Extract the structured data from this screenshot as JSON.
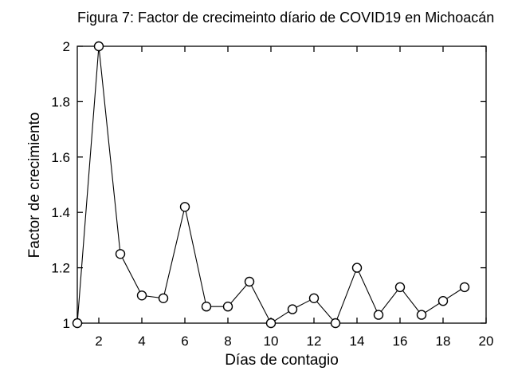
{
  "figure": {
    "title": "Figura 7: Factor de crecimeinto díario de COVID19 en Michoacán"
  },
  "chart_data": {
    "type": "line",
    "title": "Figura 7: Factor de crecimeinto díario de COVID19 en Michoacán",
    "xlabel": "Días de contagio",
    "ylabel": "Factor de crecimiento",
    "x": [
      1,
      2,
      3,
      4,
      5,
      6,
      7,
      8,
      9,
      10,
      11,
      12,
      13,
      14,
      15,
      16,
      17,
      18,
      19
    ],
    "y": [
      1.0,
      2.0,
      1.25,
      1.1,
      1.09,
      1.42,
      1.06,
      1.06,
      1.15,
      1.0,
      1.05,
      1.09,
      1.0,
      1.2,
      1.03,
      1.13,
      1.03,
      1.08,
      1.13
    ],
    "xlim": [
      1,
      20
    ],
    "ylim": [
      1,
      2
    ],
    "x_ticks": [
      2,
      4,
      6,
      8,
      10,
      12,
      14,
      16,
      18,
      20
    ],
    "y_ticks": [
      1,
      1.2,
      1.4,
      1.6,
      1.8,
      2
    ],
    "grid": false,
    "line_color": "#000000",
    "marker": "open-circle",
    "marker_fill": "#ffffff",
    "frame_color": "#000000",
    "background": "#ffffff"
  }
}
